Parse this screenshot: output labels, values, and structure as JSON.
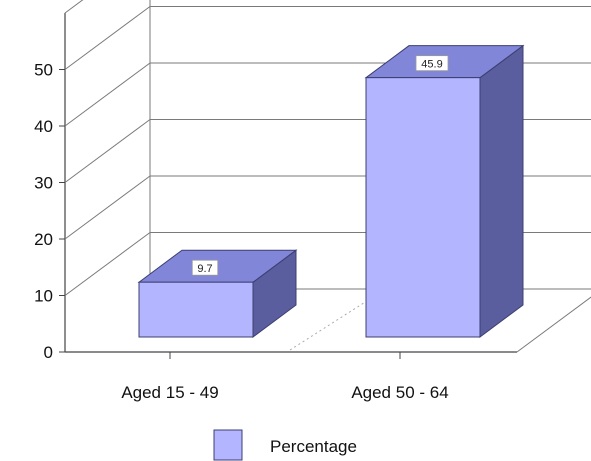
{
  "chart_data": {
    "type": "bar",
    "categories": [
      "Aged 15 - 49",
      "Aged 50 - 64"
    ],
    "series": [
      {
        "name": "Percentage",
        "values": [
          9.7,
          45.9
        ]
      }
    ],
    "data_labels": [
      "9.7",
      "45.9"
    ],
    "yticks": [
      "0",
      "10",
      "20",
      "30",
      "40",
      "50"
    ],
    "ylim": [
      0,
      60
    ],
    "grid": true,
    "legend_position": "bottom",
    "colors": {
      "bar_front": "#b3b6ff",
      "bar_top": "#8286d8",
      "bar_side": "#5a5d9e",
      "bar_edge": "#3c3f72",
      "grid": "#7a7a7a",
      "axis": "#444444"
    }
  }
}
